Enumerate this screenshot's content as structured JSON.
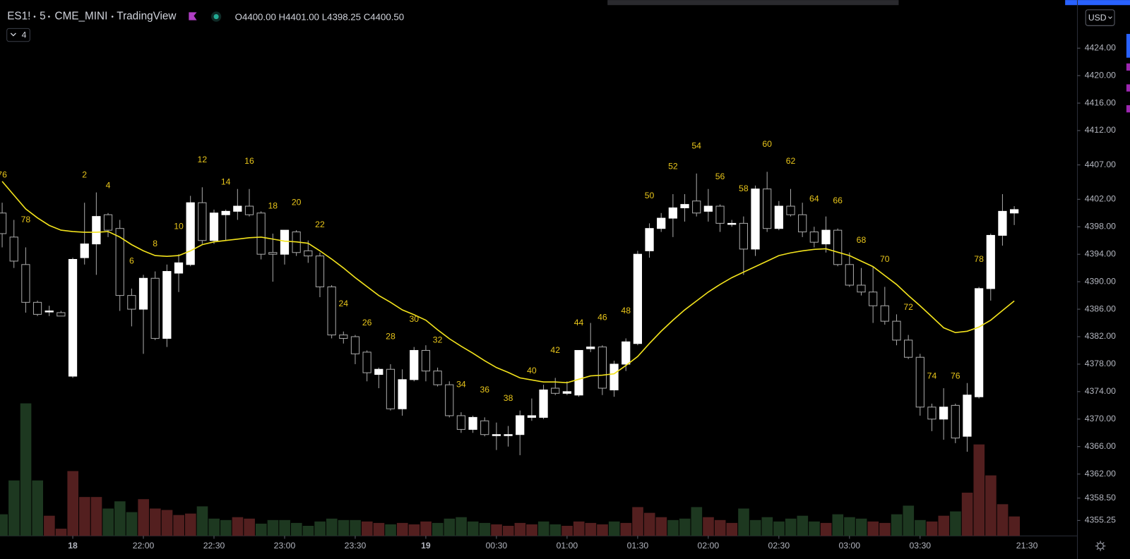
{
  "header": {
    "symbol": "ES1!",
    "interval": "5",
    "exchange": "CME_MINI",
    "source": "TradingView",
    "ohlc": [
      {
        "key": "O",
        "value": "4400.00"
      },
      {
        "key": "H",
        "value": "4401.00"
      },
      {
        "key": "L",
        "value": "4398.25"
      },
      {
        "key": "C",
        "value": "4400.50"
      }
    ],
    "indicators": "4"
  },
  "currency": "USD",
  "clock": "21:30",
  "chart_data": {
    "type": "candlestick",
    "categories": [
      null,
      null,
      null,
      null,
      null,
      null,
      "18",
      null,
      null,
      null,
      null,
      null,
      "22:00",
      null,
      null,
      null,
      null,
      null,
      "22:30",
      null,
      null,
      null,
      null,
      null,
      "23:00",
      null,
      null,
      null,
      null,
      null,
      "23:30",
      null,
      null,
      null,
      null,
      null,
      "19",
      null,
      null,
      null,
      null,
      null,
      "00:30",
      null,
      null,
      null,
      null,
      null,
      "01:00",
      null,
      null,
      null,
      null,
      null,
      "01:30",
      null,
      null,
      null,
      null,
      null,
      "02:00",
      null,
      null,
      null,
      null,
      null,
      "02:30",
      null,
      null,
      null,
      null,
      null,
      "03:00",
      null,
      null,
      null,
      null,
      null,
      "03:30",
      null,
      null,
      null,
      null,
      null,
      null,
      null,
      null
    ],
    "ohlc": [
      [
        4400,
        4401.5,
        4395,
        4397
      ],
      [
        4396.5,
        4399,
        4392,
        4393
      ],
      [
        4392.5,
        4395,
        4385.5,
        4387
      ],
      [
        4387,
        4387.25,
        4385,
        4385.25
      ],
      [
        4385.75,
        4386.5,
        4385,
        4385.75
      ],
      [
        4385.5,
        4385.75,
        4385,
        4385
      ],
      [
        4376.25,
        4393.5,
        4376,
        4393.25
      ],
      [
        4393.5,
        4401.5,
        4392.5,
        4395.5
      ],
      [
        4395.5,
        4403,
        4391,
        4399.5
      ],
      [
        4399.75,
        4400,
        4396.5,
        4397.5
      ],
      [
        4397.75,
        4399,
        4385.75,
        4388
      ],
      [
        4388,
        4389,
        4383.5,
        4386
      ],
      [
        4386,
        4391,
        4379.5,
        4390.5
      ],
      [
        4390.5,
        4391.5,
        4381.5,
        4381.75
      ],
      [
        4381.75,
        4392.5,
        4380.5,
        4391.5
      ],
      [
        4391.25,
        4394,
        4388.5,
        4392.75
      ],
      [
        4392.5,
        4402.5,
        4392.25,
        4401.5
      ],
      [
        4401.5,
        4403.75,
        4395.5,
        4396
      ],
      [
        4396,
        4400.5,
        4395.5,
        4400
      ],
      [
        4399.75,
        4400.5,
        4396,
        4400.25
      ],
      [
        4400.25,
        4403.5,
        4399,
        4401
      ],
      [
        4401,
        4403.5,
        4399.5,
        4399.75
      ],
      [
        4400,
        4400.25,
        4393.25,
        4394
      ],
      [
        4394.25,
        4397,
        4390,
        4394
      ],
      [
        4394,
        4397.5,
        4392.5,
        4397.5
      ],
      [
        4397.25,
        4397.5,
        4393.75,
        4394.25
      ],
      [
        4394.5,
        4396,
        4392.75,
        4393.75
      ],
      [
        4393.75,
        4394.25,
        4387.75,
        4389.25
      ],
      [
        4389.25,
        4389.5,
        4381.75,
        4382.25
      ],
      [
        4382.25,
        4382.75,
        4381,
        4381.75
      ],
      [
        4382,
        4382.25,
        4378,
        4379.5
      ],
      [
        4379.75,
        4380,
        4375.5,
        4376.75
      ],
      [
        4376.5,
        4377.5,
        4374.5,
        4377.25
      ],
      [
        4377.25,
        4378,
        4371.25,
        4371.5
      ],
      [
        4371.5,
        4377.25,
        4370.5,
        4375.75
      ],
      [
        4375.75,
        4380.5,
        4375.5,
        4380
      ],
      [
        4380,
        4380.75,
        4375.5,
        4377
      ],
      [
        4377,
        4377.5,
        4374.75,
        4375
      ],
      [
        4375,
        4375.5,
        4370.25,
        4370.5
      ],
      [
        4370.5,
        4371,
        4368,
        4368.5
      ],
      [
        4368.5,
        4370.5,
        4368,
        4370.25
      ],
      [
        4369.75,
        4370.25,
        4367.5,
        4367.75
      ],
      [
        4367.75,
        4369.5,
        4365.5,
        4367.75
      ],
      [
        4367.75,
        4369,
        4366,
        4367.75
      ],
      [
        4367.75,
        4371.25,
        4364.75,
        4370.5
      ],
      [
        4370.25,
        4373,
        4369.75,
        4370.5
      ],
      [
        4370.25,
        4375,
        4370,
        4374.25
      ],
      [
        4374.5,
        4376,
        4373.5,
        4373.75
      ],
      [
        4373.75,
        4375.5,
        4373.5,
        4374
      ],
      [
        4373.5,
        4380,
        4373.25,
        4380
      ],
      [
        4380.25,
        4384,
        4379.75,
        4380.5
      ],
      [
        4380.5,
        4380.75,
        4373.5,
        4374.5
      ],
      [
        4374.25,
        4378.5,
        4373.25,
        4378
      ],
      [
        4378,
        4381.75,
        4377,
        4381.25
      ],
      [
        4381,
        4394.5,
        4380.75,
        4394
      ],
      [
        4394.5,
        4398.5,
        4393.5,
        4397.75
      ],
      [
        4397.75,
        4400,
        4397.25,
        4399.25
      ],
      [
        4399.25,
        4402.75,
        4396.5,
        4400.75
      ],
      [
        4400.75,
        4402.75,
        4398.75,
        4401.25
      ],
      [
        4401.75,
        4405.75,
        4399.5,
        4400
      ],
      [
        4400.25,
        4403.5,
        4398.75,
        4401
      ],
      [
        4401,
        4401.25,
        4397.25,
        4398.5
      ],
      [
        4398.5,
        4399,
        4398,
        4398.5
      ],
      [
        4398.5,
        4399.5,
        4391,
        4394.75
      ],
      [
        4394.75,
        4404,
        4393.75,
        4403.5
      ],
      [
        4403.5,
        4406,
        4397.25,
        4397.75
      ],
      [
        4397.75,
        4401.75,
        4397.5,
        4401
      ],
      [
        4401,
        4403.5,
        4399.5,
        4399.75
      ],
      [
        4399.75,
        4401.5,
        4396.5,
        4397.25
      ],
      [
        4397.25,
        4398,
        4395,
        4395.75
      ],
      [
        4395.5,
        4399.5,
        4394.25,
        4397.5
      ],
      [
        4397.5,
        4397.75,
        4392.25,
        4392.5
      ],
      [
        4392.5,
        4394.25,
        4389.25,
        4389.5
      ],
      [
        4389.5,
        4392,
        4388,
        4388.5
      ],
      [
        4388.5,
        4392.25,
        4384,
        4386.5
      ],
      [
        4386.5,
        4389.25,
        4383.75,
        4384.25
      ],
      [
        4384.25,
        4385.25,
        4380.75,
        4381.5
      ],
      [
        4381.5,
        4382.25,
        4378.75,
        4379
      ],
      [
        4379,
        4379.5,
        4370.5,
        4371.75
      ],
      [
        4371.75,
        4372.25,
        4368.25,
        4370
      ],
      [
        4370,
        4374.5,
        4367,
        4371.75
      ],
      [
        4372,
        4372.25,
        4366.5,
        4367.25
      ],
      [
        4367.5,
        4375.25,
        4365.25,
        4373.5
      ],
      [
        4373.25,
        4389.25,
        4373,
        4389
      ],
      [
        4389,
        4397,
        4387.25,
        4396.75
      ],
      [
        4396.75,
        4402.75,
        4395.25,
        4400.25
      ],
      [
        4400,
        4401,
        4398.25,
        4400.5
      ]
    ],
    "up_color": "#ffffff",
    "down_color": "#000000",
    "wick_color": "#a8a8a8",
    "ema": {
      "color": "#f2e21c",
      "values": [
        4404.6,
        4402.6,
        4400.6,
        4399.3,
        4398.2,
        4397.5,
        4397.3,
        4397.2,
        4397.2,
        4397.3,
        4396.5,
        4395.4,
        4394.5,
        4393.8,
        4393.7,
        4393.8,
        4394.5,
        4395.4,
        4395.8,
        4396.0,
        4396.2,
        4396.4,
        4396.5,
        4396.2,
        4395.9,
        4395.8,
        4395.6,
        4394.5,
        4393.3,
        4392.0,
        4390.6,
        4389.3,
        4388.0,
        4387.0,
        4385.9,
        4385.2,
        4384.4,
        4383.0,
        4381.7,
        4380.6,
        4379.6,
        4378.5,
        4377.5,
        4376.8,
        4376.0,
        4375.7,
        4375.4,
        4375.4,
        4375.3,
        4375.8,
        4376.3,
        4376.4,
        4376.6,
        4377.8,
        4379.1,
        4381.0,
        4382.8,
        4384.4,
        4385.9,
        4387.2,
        4388.5,
        4389.6,
        4390.6,
        4391.4,
        4392.2,
        4393.0,
        4393.8,
        4394.2,
        4394.5,
        4394.7,
        4394.8,
        4394.3,
        4393.8,
        4393.0,
        4392.2,
        4390.9,
        4389.6,
        4388.0,
        4386.5,
        4384.9,
        4383.3,
        4382.6,
        4382.8,
        4383.4,
        4384.4,
        4385.8,
        4387.2
      ]
    },
    "bar_count": [
      76,
      null,
      78,
      null,
      null,
      null,
      null,
      2,
      null,
      4,
      null,
      6,
      null,
      8,
      null,
      10,
      null,
      12,
      null,
      14,
      null,
      16,
      null,
      18,
      null,
      20,
      null,
      22,
      null,
      24,
      null,
      26,
      null,
      28,
      null,
      30,
      null,
      32,
      null,
      34,
      null,
      36,
      null,
      38,
      null,
      40,
      null,
      42,
      null,
      44,
      null,
      46,
      null,
      48,
      null,
      50,
      null,
      52,
      null,
      54,
      null,
      56,
      null,
      58,
      null,
      60,
      null,
      62,
      null,
      64,
      null,
      66,
      null,
      68,
      null,
      70,
      null,
      72,
      null,
      74,
      null,
      76,
      null,
      78,
      null,
      null,
      null
    ],
    "bar_count_color": "#e8c51a",
    "volume": {
      "vlim": [
        0,
        200
      ],
      "values": [
        30,
        77,
        184,
        77,
        28,
        10,
        90,
        54,
        54,
        38,
        48,
        33,
        51,
        38,
        36,
        29,
        31,
        41,
        24,
        22,
        26,
        24,
        17,
        22,
        22,
        18,
        14,
        20,
        24,
        22,
        22,
        20,
        18,
        16,
        18,
        16,
        20,
        18,
        24,
        26,
        20,
        18,
        16,
        14,
        18,
        16,
        20,
        16,
        14,
        20,
        18,
        16,
        20,
        18,
        40,
        32,
        26,
        22,
        24,
        40,
        26,
        22,
        18,
        38,
        22,
        26,
        20,
        24,
        28,
        20,
        18,
        30,
        26,
        24,
        20,
        18,
        30,
        42,
        22,
        20,
        28,
        34,
        60,
        127,
        84,
        44,
        27
      ],
      "colors": [
        "#1d3820",
        "#1d3820",
        "#1d3820",
        "#1d3820",
        "#531f1f",
        "#531f1f",
        "#531f1f",
        "#531f1f",
        "#531f1f",
        "#1d3820",
        "#1d3820",
        "#1d3820",
        "#531f1f",
        "#531f1f",
        "#531f1f",
        "#531f1f",
        "#531f1f",
        "#1d3820",
        "#1d3820",
        "#1d3820",
        "#531f1f",
        "#531f1f",
        "#1d3820",
        "#1d3820",
        "#1d3820",
        "#1d3820",
        "#1d3820",
        "#1d3820",
        "#1d3820",
        "#1d3820",
        "#1d3820",
        "#531f1f",
        "#531f1f",
        "#1d3820",
        "#531f1f",
        "#531f1f",
        "#531f1f",
        "#1d3820",
        "#1d3820",
        "#1d3820",
        "#1d3820",
        "#1d3820",
        "#531f1f",
        "#531f1f",
        "#531f1f",
        "#531f1f",
        "#1d3820",
        "#1d3820",
        "#531f1f",
        "#531f1f",
        "#531f1f",
        "#531f1f",
        "#1d3820",
        "#531f1f",
        "#531f1f",
        "#531f1f",
        "#531f1f",
        "#1d3820",
        "#1d3820",
        "#1d3820",
        "#531f1f",
        "#531f1f",
        "#531f1f",
        "#1d3820",
        "#1d3820",
        "#1d3820",
        "#1d3820",
        "#1d3820",
        "#1d3820",
        "#1d3820",
        "#531f1f",
        "#1d3820",
        "#1d3820",
        "#1d3820",
        "#531f1f",
        "#531f1f",
        "#1d3820",
        "#1d3820",
        "#1d3820",
        "#531f1f",
        "#531f1f",
        "#1d3820",
        "#531f1f",
        "#531f1f",
        "#531f1f",
        "#531f1f",
        "#531f1f"
      ]
    },
    "ylim": [
      4353,
      4431
    ],
    "yticks": [
      {
        "value": 4355.25,
        "label": "4355.25"
      },
      {
        "value": 4358.5,
        "label": "4358.50"
      },
      {
        "value": 4362,
        "label": "4362.00"
      },
      {
        "value": 4366,
        "label": "4366.00"
      },
      {
        "value": 4370,
        "label": "4370.00"
      },
      {
        "value": 4374,
        "label": "4374.00"
      },
      {
        "value": 4378,
        "label": "4378.00"
      },
      {
        "value": 4382,
        "label": "4382.00"
      },
      {
        "value": 4386,
        "label": "4386.00"
      },
      {
        "value": 4390,
        "label": "4390.00"
      },
      {
        "value": 4394,
        "label": "4394.00"
      },
      {
        "value": 4398,
        "label": "4398.00"
      },
      {
        "value": 4402,
        "label": "4402.00"
      },
      {
        "value": 4407,
        "label": "4407.00"
      },
      {
        "value": 4412,
        "label": "4412.00"
      },
      {
        "value": 4416,
        "label": "4416.00"
      },
      {
        "value": 4420,
        "label": "4420.00"
      },
      {
        "value": 4424,
        "label": "4424.00"
      }
    ]
  }
}
